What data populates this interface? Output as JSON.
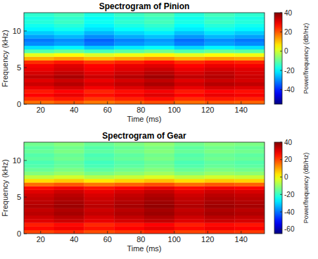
{
  "chart_data": [
    {
      "type": "heatmap",
      "title": "Spectrogram of Pinion",
      "xlabel": "Time (ms)",
      "ylabel": "Frequency (kHz)",
      "xlim": [
        10,
        154
      ],
      "xticks": [
        20,
        40,
        60,
        80,
        100,
        120,
        140
      ],
      "ylim": [
        0,
        12.5
      ],
      "yticks": [
        0,
        5,
        10
      ],
      "x_edges": [
        10,
        28,
        46,
        64,
        82,
        100,
        118,
        136,
        154
      ],
      "y_edges": [
        0,
        0.5,
        1,
        1.5,
        2,
        2.5,
        3,
        3.5,
        4,
        4.5,
        5,
        5.5,
        6,
        6.5,
        7,
        7.5,
        8,
        8.5,
        9,
        9.5,
        10,
        10.5,
        11,
        11.5,
        12,
        12.5
      ],
      "cells": [
        [
          18,
          20,
          17,
          19,
          21,
          18,
          20,
          19
        ],
        [
          24,
          26,
          23,
          25,
          27,
          24,
          26,
          25
        ],
        [
          28,
          30,
          27,
          29,
          31,
          28,
          30,
          29
        ],
        [
          26,
          28,
          25,
          27,
          29,
          26,
          28,
          27
        ],
        [
          30,
          32,
          29,
          31,
          33,
          30,
          32,
          31
        ],
        [
          33,
          35,
          32,
          34,
          36,
          33,
          35,
          34
        ],
        [
          31,
          33,
          30,
          32,
          34,
          31,
          33,
          32
        ],
        [
          34,
          36,
          33,
          35,
          37,
          34,
          35,
          33
        ],
        [
          32,
          34,
          31,
          33,
          35,
          32,
          34,
          32
        ],
        [
          30,
          32,
          29,
          31,
          33,
          30,
          32,
          31
        ],
        [
          29,
          31,
          28,
          30,
          31,
          28,
          30,
          29
        ],
        [
          24,
          26,
          23,
          25,
          27,
          24,
          26,
          25
        ],
        [
          12,
          14,
          11,
          13,
          15,
          12,
          14,
          13
        ],
        [
          2,
          4,
          1,
          3,
          5,
          2,
          4,
          3
        ],
        [
          -12,
          -10,
          -13,
          -11,
          -9,
          -12,
          -10,
          -11
        ],
        [
          -22,
          -20,
          -24,
          -21,
          -19,
          -23,
          -20,
          -22
        ],
        [
          -30,
          -28,
          -32,
          -29,
          -27,
          -31,
          -28,
          -30
        ],
        [
          -32,
          -30,
          -34,
          -31,
          -29,
          -33,
          -30,
          -32
        ],
        [
          -28,
          -26,
          -30,
          -27,
          -25,
          -29,
          -26,
          -28
        ],
        [
          -24,
          -22,
          -26,
          -23,
          -21,
          -25,
          -22,
          -24
        ],
        [
          -20,
          -18,
          -22,
          -19,
          -17,
          -21,
          -18,
          -20
        ],
        [
          -18,
          -16,
          -20,
          -17,
          -15,
          -19,
          -16,
          -18
        ],
        [
          -16,
          -14,
          -18,
          -15,
          -13,
          -17,
          -14,
          -16
        ],
        [
          -17,
          -15,
          -19,
          -16,
          -14,
          -18,
          -15,
          -17
        ],
        [
          -15,
          -13,
          -17,
          -14,
          -12,
          -16,
          -13,
          -15
        ]
      ],
      "colorbar": {
        "label": "Power/frequency (dB/Hz)",
        "range": [
          -55,
          40
        ],
        "ticks": [
          -40,
          -20,
          0,
          20,
          40
        ]
      }
    },
    {
      "type": "heatmap",
      "title": "Spectrogram of Gear",
      "xlabel": "Time (ms)",
      "ylabel": "Frequency (kHz)",
      "xlim": [
        10,
        154
      ],
      "xticks": [
        20,
        40,
        60,
        80,
        100,
        120,
        140
      ],
      "ylim": [
        0,
        12.5
      ],
      "yticks": [
        0,
        5,
        10
      ],
      "x_edges": [
        10,
        28,
        46,
        64,
        82,
        100,
        118,
        136,
        154
      ],
      "y_edges": [
        0,
        0.5,
        1,
        1.5,
        2,
        2.5,
        3,
        3.5,
        4,
        4.5,
        5,
        5.5,
        6,
        6.5,
        7,
        7.5,
        8,
        8.5,
        9,
        9.5,
        10,
        10.5,
        11,
        11.5,
        12,
        12.5
      ],
      "cells": [
        [
          20,
          22,
          19,
          21,
          23,
          20,
          22,
          21
        ],
        [
          26,
          28,
          25,
          27,
          29,
          26,
          28,
          27
        ],
        [
          24,
          26,
          23,
          25,
          27,
          24,
          26,
          25
        ],
        [
          30,
          32,
          29,
          31,
          33,
          30,
          32,
          31
        ],
        [
          32,
          34,
          31,
          33,
          35,
          32,
          34,
          33
        ],
        [
          34,
          36,
          33,
          35,
          37,
          34,
          36,
          35
        ],
        [
          33,
          35,
          32,
          34,
          36,
          33,
          35,
          34
        ],
        [
          35,
          37,
          34,
          36,
          38,
          35,
          37,
          36
        ],
        [
          34,
          36,
          33,
          35,
          37,
          34,
          36,
          35
        ],
        [
          33,
          35,
          32,
          34,
          36,
          33,
          35,
          34
        ],
        [
          32,
          34,
          31,
          33,
          35,
          32,
          34,
          33
        ],
        [
          30,
          32,
          29,
          31,
          33,
          30,
          32,
          31
        ],
        [
          26,
          28,
          25,
          27,
          29,
          26,
          28,
          27
        ],
        [
          16,
          18,
          15,
          17,
          19,
          16,
          18,
          17
        ],
        [
          4,
          6,
          3,
          5,
          7,
          4,
          6,
          5
        ],
        [
          -6,
          -4,
          -7,
          -5,
          -3,
          -6,
          -4,
          -5
        ],
        [
          -12,
          -10,
          -13,
          -11,
          -9,
          -12,
          -10,
          -11
        ],
        [
          -15,
          -13,
          -16,
          -14,
          -12,
          -15,
          -13,
          -14
        ],
        [
          -17,
          -15,
          -18,
          -16,
          -14,
          -17,
          -15,
          -16
        ],
        [
          -18,
          -16,
          -19,
          -17,
          -15,
          -18,
          -16,
          -17
        ],
        [
          -16,
          -14,
          -17,
          -15,
          -13,
          -16,
          -14,
          -15
        ],
        [
          -17,
          -15,
          -18,
          -16,
          -14,
          -17,
          -15,
          -16
        ],
        [
          -15,
          -13,
          -16,
          -14,
          -12,
          -15,
          -13,
          -14
        ],
        [
          -16,
          -14,
          -17,
          -15,
          -13,
          -16,
          -14,
          -15
        ],
        [
          -14,
          -12,
          -15,
          -13,
          -11,
          -14,
          -12,
          -13
        ]
      ],
      "colorbar": {
        "label": "Power/frequency (dB/Hz)",
        "range": [
          -65,
          40
        ],
        "ticks": [
          -60,
          -40,
          -20,
          0,
          20,
          40
        ]
      }
    }
  ]
}
